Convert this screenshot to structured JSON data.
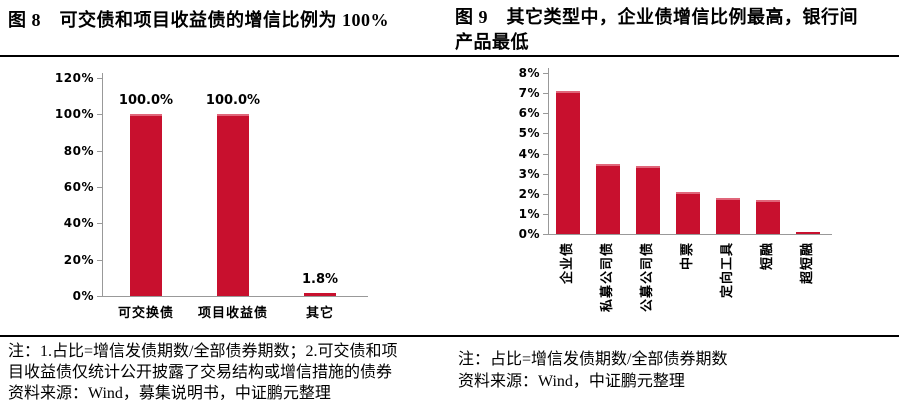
{
  "colors": {
    "bar": "#C8102E",
    "bar_edge": "#E0667A",
    "axis": "#999999",
    "rule": "#000000",
    "text": "#000000"
  },
  "left_panel": {
    "title_lines": [
      "图 8　可交债和项目收益债的增信比例为 100%"
    ],
    "notes": [
      "注：1.占比=增信发债期数/全部债券期数；2.可交债和项",
      "目收益债仅统计公开披露了交易结构或增信措施的债券",
      "资料来源：Wind，募集说明书，中证鹏元整理"
    ]
  },
  "right_panel": {
    "title_lines": [
      "图 9　其它类型中，企业债增信比例最高，银行间",
      "产品最低"
    ],
    "notes": [
      "注：占比=增信发债期数/全部债券期数",
      "资料来源：Wind，中证鹏元整理"
    ]
  },
  "chart_data": [
    {
      "type": "bar",
      "title": "图 8　可交债和项目收益债的增信比例为 100%",
      "categories": [
        "可交换债",
        "项目收益债",
        "其它"
      ],
      "values": [
        100.0,
        100.0,
        1.8
      ],
      "data_labels": [
        "100.0%",
        "100.0%",
        "1.8%"
      ],
      "xlabel": "",
      "ylabel": "",
      "ylim": [
        0,
        120
      ],
      "yticks": {
        "values": [
          120,
          100,
          80,
          60,
          40,
          20,
          0
        ],
        "labels": [
          "120%",
          "100%",
          "80%",
          "60%",
          "40%",
          "20%",
          "0%"
        ]
      },
      "grid": false,
      "legend": false,
      "bar_color": "#C8102E"
    },
    {
      "type": "bar",
      "title": "图 9　其它类型中，企业债增信比例最高，银行间产品最低",
      "categories": [
        "企业债",
        "私募公司债",
        "公募公司债",
        "中票",
        "定向工具",
        "短融",
        "超短融"
      ],
      "values": [
        7.1,
        3.5,
        3.4,
        2.1,
        1.8,
        1.7,
        0.1
      ],
      "data_labels": null,
      "xlabel": "",
      "ylabel": "",
      "ylim": [
        0,
        8
      ],
      "yticks": {
        "values": [
          8,
          7,
          6,
          5,
          4,
          3,
          2,
          1,
          0
        ],
        "labels": [
          "8%",
          "7%",
          "6%",
          "5%",
          "4%",
          "3%",
          "2%",
          "1%",
          "0%"
        ]
      },
      "grid": false,
      "legend": false,
      "x_label_rotation": -90,
      "bar_color": "#C8102E"
    }
  ]
}
